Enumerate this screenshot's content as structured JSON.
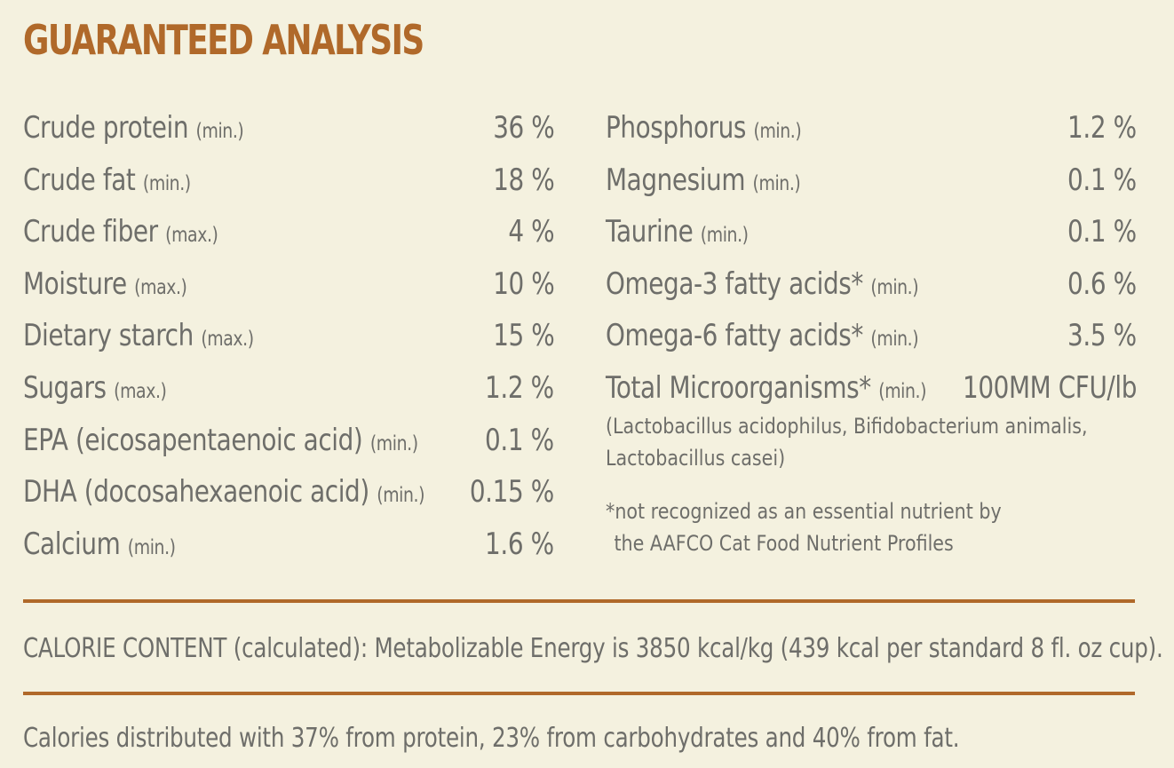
{
  "title": "GUARANTEED ANALYSIS",
  "left_items": [
    {
      "name": "Crude protein",
      "qualifier": "(min.)",
      "value": "36 %"
    },
    {
      "name": "Crude fat",
      "qualifier": "(min.)",
      "value": "18 %"
    },
    {
      "name": "Crude fiber",
      "qualifier": "(max.)",
      "value": "4 %"
    },
    {
      "name": "Moisture",
      "qualifier": "(max.)",
      "value": "10 %"
    },
    {
      "name": "Dietary starch",
      "qualifier": "(max.)",
      "value": "15 %"
    },
    {
      "name": "Sugars",
      "qualifier": "(max.)",
      "value": "1.2 %"
    },
    {
      "name": "EPA (eicosapentaenoic acid)",
      "qualifier": "(min.)",
      "value": "0.1 %"
    },
    {
      "name": "DHA (docosahexaenoic acid)",
      "qualifier": "(min.)",
      "value": "0.15 %"
    },
    {
      "name": "Calcium",
      "qualifier": "(min.)",
      "value": "1.6 %"
    }
  ],
  "right_items": [
    {
      "name": "Phosphorus",
      "qualifier": "(min.)",
      "value": "1.2 %"
    },
    {
      "name": "Magnesium",
      "qualifier": "(min.)",
      "value": "0.1 %"
    },
    {
      "name": "Taurine",
      "qualifier": "(min.)",
      "value": "0.1 %"
    },
    {
      "name": "Omega-3 fatty acids*",
      "qualifier": "(min.)",
      "value": "0.6 %"
    },
    {
      "name": "Omega-6  fatty acids*",
      "qualifier": "(min.)",
      "value": "3.5 %"
    },
    {
      "name": "Total Microorganisms*",
      "qualifier": "(min.)",
      "value": "100MM CFU/lb"
    }
  ],
  "probiotics": {
    "line1": "(Lactobacillus acidophilus, Bifidobacterium animalis,",
    "line2": "Lactobacillus casei)"
  },
  "footnote": {
    "line1": "*not recognized as an essential nutrient by",
    "line2": "the AAFCO Cat Food Nutrient Profiles"
  },
  "calorie_content": "CALORIE CONTENT (calculated): Metabolizable Energy is 3850 kcal/kg (439 kcal per standard 8 fl. oz cup).",
  "calorie_distribution": "Calories distributed with 37% from protein, 23% from carbohydrates and 40% from fat.",
  "colors": {
    "background": "#f4f1df",
    "accent": "#b0692a",
    "text": "#6e6e6a"
  }
}
